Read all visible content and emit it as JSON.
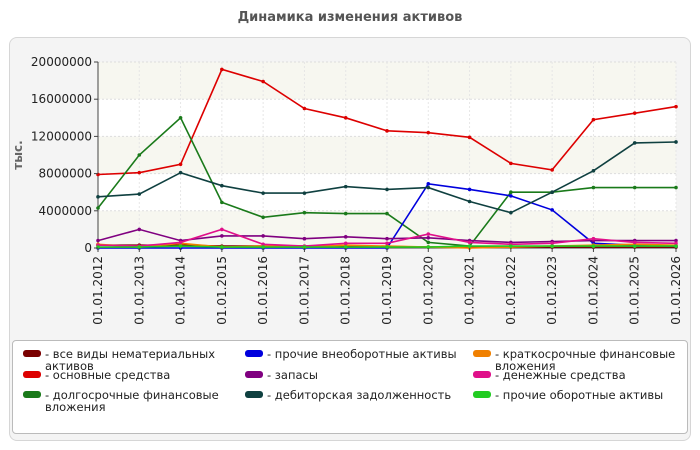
{
  "chart_data": {
    "type": "line",
    "title": "Динамика изменения активов",
    "ylabel": "тыс.",
    "xlabel": "",
    "categories": [
      "01.01.2012",
      "01.01.2013",
      "01.01.2014",
      "01.01.2015",
      "01.01.2016",
      "01.01.2017",
      "01.01.2018",
      "01.01.2019",
      "01.01.2020",
      "01.01.2021",
      "01.01.2022",
      "01.01.2023",
      "01.01.2024",
      "01.01.2025",
      "01.01.2026"
    ],
    "yticks": [
      "0",
      "4000000",
      "8000000",
      "12000000",
      "16000000",
      "20000000"
    ],
    "ylim": [
      0,
      20000000
    ],
    "grid": true,
    "legend_position": "bottom",
    "series": [
      {
        "name": "- все виды нематериальных активов",
        "color": "#7a0000",
        "values": [
          300000,
          300000,
          300000,
          200000,
          200000,
          200000,
          200000,
          150000,
          100000,
          100000,
          100000,
          100000,
          100000,
          100000,
          100000
        ]
      },
      {
        "name": "- основные средства",
        "color": "#dd0000",
        "values": [
          7900000,
          8100000,
          9000000,
          19200000,
          17900000,
          15000000,
          14000000,
          12600000,
          12400000,
          11900000,
          9100000,
          8400000,
          13800000,
          14500000,
          15200000
        ]
      },
      {
        "name": "- долгосрочные финансовые вложения",
        "color": "#1a7a1a",
        "values": [
          4300000,
          10000000,
          14000000,
          4900000,
          3300000,
          3800000,
          3700000,
          3700000,
          600000,
          200000,
          6000000,
          6000000,
          6500000,
          6500000,
          6500000
        ]
      },
      {
        "name": "- прочие внеоборотные активы",
        "color": "#0000dd",
        "values": [
          0,
          0,
          0,
          0,
          0,
          0,
          0,
          0,
          6900000,
          6300000,
          5600000,
          4100000,
          500000,
          300000,
          200000
        ]
      },
      {
        "name": "- запасы",
        "color": "#800080",
        "values": [
          800000,
          2000000,
          800000,
          1300000,
          1300000,
          1000000,
          1200000,
          1000000,
          1100000,
          800000,
          600000,
          700000,
          800000,
          800000,
          800000
        ]
      },
      {
        "name": "- дебиторская задолженность",
        "color": "#0f4040",
        "values": [
          5500000,
          5800000,
          8100000,
          6700000,
          5900000,
          5900000,
          6600000,
          6300000,
          6500000,
          5000000,
          3800000,
          6000000,
          8300000,
          11300000,
          11400000
        ]
      },
      {
        "name": "- краткосрочные финансовые вложения",
        "color": "#f08000",
        "values": [
          400000,
          100000,
          500000,
          100000,
          200000,
          100000,
          300000,
          200000,
          100000,
          0,
          100000,
          200000,
          300000,
          400000,
          300000
        ]
      },
      {
        "name": "- денежные средства",
        "color": "#e0108a",
        "values": [
          300000,
          200000,
          600000,
          2000000,
          400000,
          200000,
          500000,
          500000,
          1500000,
          600000,
          400000,
          500000,
          1000000,
          600000,
          500000
        ]
      },
      {
        "name": "- прочие оборотные активы",
        "color": "#22cc22",
        "values": [
          100000,
          100000,
          200000,
          100000,
          100000,
          100000,
          100000,
          100000,
          100000,
          200000,
          200000,
          200000,
          200000,
          200000,
          200000
        ]
      }
    ]
  }
}
